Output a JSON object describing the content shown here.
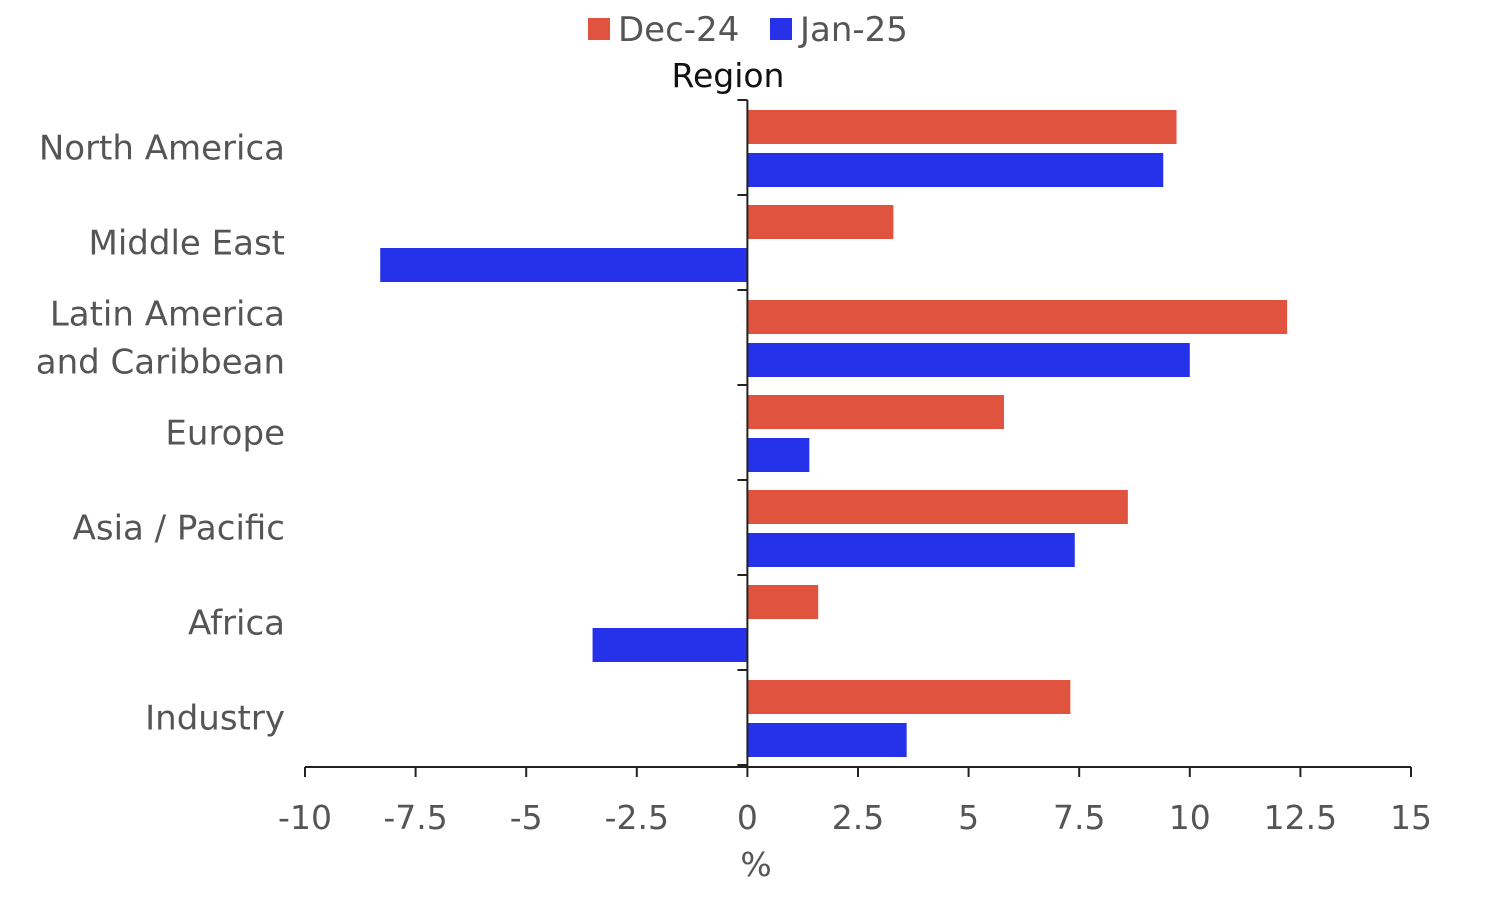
{
  "chart_data": {
    "type": "bar",
    "orientation": "horizontal",
    "title": "Region",
    "xlabel": "%",
    "ylabel": "",
    "categories": [
      [
        "North America"
      ],
      [
        "Middle East"
      ],
      [
        "Latin America",
        "and Caribbean"
      ],
      [
        "Europe"
      ],
      [
        "Asia / Pacific"
      ],
      [
        "Africa"
      ],
      [
        "Industry"
      ]
    ],
    "series": [
      {
        "name": "Dec-24",
        "color": "#e0533f",
        "values": [
          9.7,
          3.3,
          12.2,
          5.8,
          8.6,
          1.6,
          7.3
        ]
      },
      {
        "name": "Jan-25",
        "color": "#2632ea",
        "values": [
          9.4,
          -8.3,
          10.0,
          1.4,
          7.4,
          -3.5,
          3.6
        ]
      }
    ],
    "xlim": [
      -10,
      15
    ],
    "xticks": [
      -10,
      -7.5,
      -5,
      -2.5,
      0,
      2.5,
      5,
      7.5,
      10,
      12.5,
      15
    ],
    "xtick_labels": [
      "-10",
      "-7.5",
      "-5",
      "-2.5",
      "0",
      "2.5",
      "5",
      "7.5",
      "10",
      "12.5",
      "15"
    ],
    "legend_position": "top-center",
    "grid": false
  }
}
